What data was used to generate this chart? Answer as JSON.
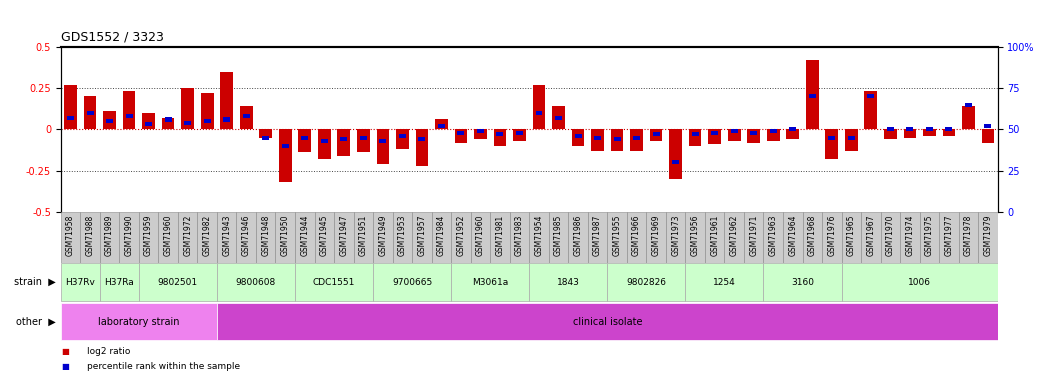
{
  "title": "GDS1552 / 3323",
  "sample_labels": [
    "GSM71958",
    "GSM71988",
    "GSM71989",
    "GSM71990",
    "GSM71959",
    "GSM71960",
    "GSM71972",
    "GSM71982",
    "GSM71943",
    "GSM71946",
    "GSM71948",
    "GSM71950",
    "GSM71944",
    "GSM71945",
    "GSM71947",
    "GSM71951",
    "GSM71949",
    "GSM71953",
    "GSM71957",
    "GSM71984",
    "GSM71952",
    "GSM71960",
    "GSM71981",
    "GSM71983",
    "GSM71954",
    "GSM71985",
    "GSM71986",
    "GSM71987",
    "GSM71955",
    "GSM71966",
    "GSM71969",
    "GSM71973",
    "GSM71956",
    "GSM71961",
    "GSM71962",
    "GSM71971",
    "GSM71963",
    "GSM71964",
    "GSM71968",
    "GSM71976",
    "GSM71965",
    "GSM71967",
    "GSM71970",
    "GSM71974",
    "GSM71975",
    "GSM71977",
    "GSM71978",
    "GSM71979"
  ],
  "log2_ratio": [
    0.27,
    0.2,
    0.11,
    0.23,
    0.1,
    0.07,
    0.25,
    0.22,
    0.35,
    0.14,
    -0.05,
    -0.32,
    -0.14,
    -0.18,
    -0.16,
    -0.14,
    -0.21,
    -0.12,
    -0.22,
    0.06,
    -0.08,
    -0.06,
    -0.1,
    -0.07,
    0.27,
    0.14,
    -0.1,
    -0.13,
    -0.13,
    -0.13,
    -0.07,
    -0.3,
    -0.1,
    -0.09,
    -0.07,
    -0.08,
    -0.07,
    -0.06,
    0.42,
    -0.18,
    -0.13,
    0.23,
    -0.06,
    -0.05,
    -0.04,
    -0.04,
    0.14,
    -0.08
  ],
  "percentile": [
    57,
    60,
    55,
    58,
    53,
    56,
    54,
    55,
    56,
    58,
    45,
    40,
    45,
    43,
    44,
    45,
    43,
    46,
    44,
    52,
    48,
    49,
    47,
    48,
    60,
    57,
    46,
    45,
    44,
    45,
    47,
    30,
    47,
    48,
    49,
    48,
    49,
    50,
    70,
    45,
    45,
    70,
    50,
    50,
    50,
    50,
    65,
    52
  ],
  "strain_groups": [
    {
      "label": "H37Rv",
      "start": 0,
      "end": 2,
      "color": "#CCFFCC"
    },
    {
      "label": "H37Ra",
      "start": 2,
      "end": 4,
      "color": "#CCFFCC"
    },
    {
      "label": "9802501",
      "start": 4,
      "end": 8,
      "color": "#CCFFCC"
    },
    {
      "label": "9800608",
      "start": 8,
      "end": 12,
      "color": "#CCFFCC"
    },
    {
      "label": "CDC1551",
      "start": 12,
      "end": 16,
      "color": "#CCFFCC"
    },
    {
      "label": "9700665",
      "start": 16,
      "end": 20,
      "color": "#CCFFCC"
    },
    {
      "label": "M3061a",
      "start": 20,
      "end": 24,
      "color": "#CCFFCC"
    },
    {
      "label": "1843",
      "start": 24,
      "end": 28,
      "color": "#CCFFCC"
    },
    {
      "label": "9802826",
      "start": 28,
      "end": 32,
      "color": "#CCFFCC"
    },
    {
      "label": "1254",
      "start": 32,
      "end": 36,
      "color": "#CCFFCC"
    },
    {
      "label": "3160",
      "start": 36,
      "end": 40,
      "color": "#CCFFCC"
    },
    {
      "label": "1006",
      "start": 40,
      "end": 48,
      "color": "#CCFFCC"
    }
  ],
  "other_groups": [
    {
      "label": "laboratory strain",
      "start": 0,
      "end": 8,
      "color": "#EE82EE"
    },
    {
      "label": "clinical isolate",
      "start": 8,
      "end": 48,
      "color": "#CC44CC"
    }
  ],
  "ylim": [
    -0.5,
    0.5
  ],
  "y2lim": [
    0,
    100
  ],
  "yticks_left": [
    -0.5,
    -0.25,
    0.0,
    0.25,
    0.5
  ],
  "ytick_labels_left": [
    "-0.5",
    "-0.25",
    "0",
    "0.25",
    "0.5"
  ],
  "y2ticks": [
    0,
    25,
    50,
    75,
    100
  ],
  "bar_color_red": "#CC0000",
  "bar_color_blue": "#0000CC",
  "zero_line_color": "#CC0000",
  "dotted_color": "#444444",
  "bg_color": "#FFFFFF",
  "plot_bg": "#FFFFFF",
  "ticklabel_bg": "#CCCCCC",
  "strain_border": "#AAAAAA",
  "legend_items": [
    {
      "color": "#CC0000",
      "label": "log2 ratio"
    },
    {
      "color": "#0000CC",
      "label": "percentile rank within the sample"
    }
  ]
}
